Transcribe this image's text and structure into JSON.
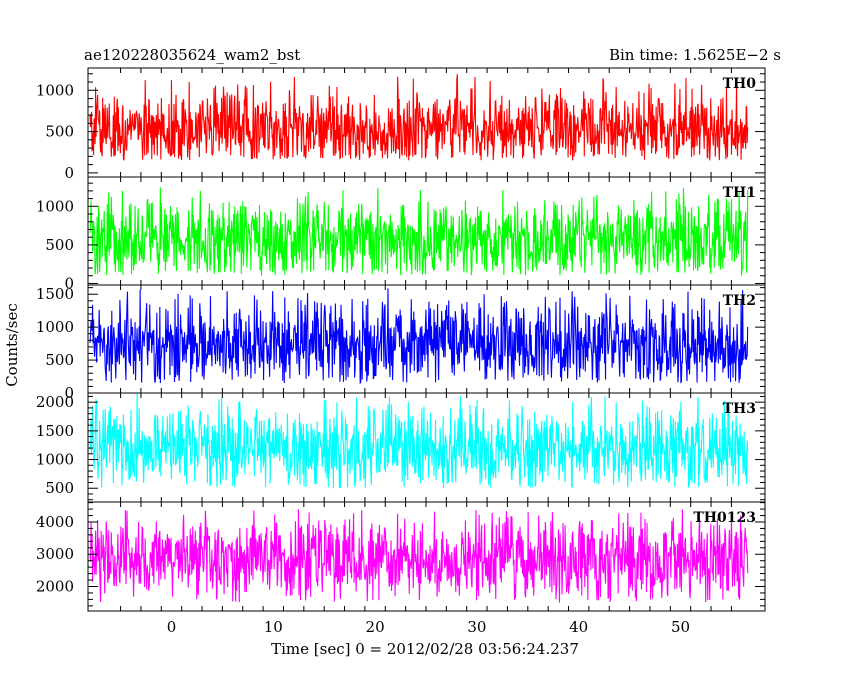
{
  "header": {
    "left": "ae120228035624_wam2_bst",
    "right": "Bin time: 1.5625E−2 s"
  },
  "chart_data": {
    "type": "line",
    "xlabel": "Time [sec] 0 = 2012/02/28 03:56:24.237",
    "ylabel": "Counts/sec",
    "xlim": [
      -8.2,
      58.3
    ],
    "x_ticks": [
      0,
      10,
      20,
      30,
      40,
      50
    ],
    "x_tick_labels": [
      "0",
      "10",
      "20",
      "30",
      "40",
      "50"
    ],
    "data_x_range": [
      -8.0,
      56.6
    ],
    "bin_time": 0.015625,
    "grid": false,
    "panels": [
      {
        "name": "TH0",
        "color": "#ff0000",
        "ylim": [
          -50,
          1270
        ],
        "yticks": [
          0,
          500,
          1000
        ],
        "ytick_labels": [
          "0",
          "500",
          "1000"
        ],
        "mean": 550,
        "low": 150,
        "high": 1200
      },
      {
        "name": "TH1",
        "color": "#00ff00",
        "ylim": [
          -20,
          1380
        ],
        "yticks": [
          0,
          500,
          1000
        ],
        "ytick_labels": [
          "0",
          "500",
          "1000"
        ],
        "mean": 560,
        "low": 100,
        "high": 1250
      },
      {
        "name": "TH2",
        "color": "#0000ff",
        "ylim": [
          0,
          1640
        ],
        "yticks": [
          0,
          500,
          1000,
          1500
        ],
        "ytick_labels": [
          "0",
          "500",
          "1000",
          "1500"
        ],
        "mean": 750,
        "low": 150,
        "high": 1600
      },
      {
        "name": "TH3",
        "color": "#00ffff",
        "ylim": [
          260,
          2160
        ],
        "yticks": [
          500,
          1000,
          1500,
          2000
        ],
        "ytick_labels": [
          "500",
          "1000",
          "1500",
          "2000"
        ],
        "mean": 1200,
        "low": 500,
        "high": 2150
      },
      {
        "name": "TH0123",
        "color": "#ff00ff",
        "ylim": [
          1240,
          4620
        ],
        "yticks": [
          2000,
          3000,
          4000
        ],
        "ytick_labels": [
          "2000",
          "3000",
          "4000"
        ],
        "mean": 2850,
        "low": 1500,
        "high": 4400
      }
    ]
  }
}
